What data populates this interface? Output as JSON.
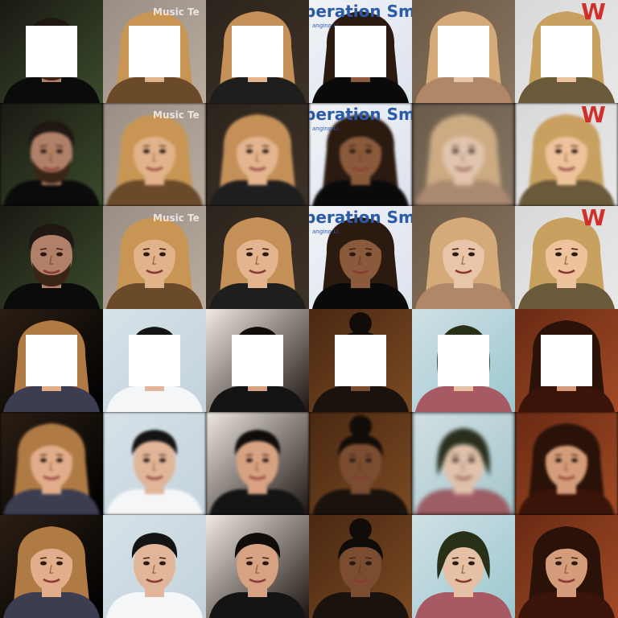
{
  "grid": {
    "columns": 6,
    "rows": 6
  },
  "row_roles": [
    "masked-input",
    "reconstruction",
    "original",
    "masked-input",
    "reconstruction",
    "original"
  ],
  "faces": [
    {
      "id": "a",
      "skin": "#b08068",
      "hair": "#1e1712",
      "bg": "#1a1a14",
      "bg2": "#3a4a2a",
      "shirt": "#0b0b0b",
      "beard": true,
      "hair_style": "short"
    },
    {
      "id": "b",
      "skin": "#e2b38a",
      "hair": "#c89555",
      "bg": "#9a8e86",
      "bg2": "#b8ad9f",
      "shirt": "#6b4a2a",
      "beard": false,
      "hair_style": "long"
    },
    {
      "id": "c",
      "skin": "#e3b48e",
      "hair": "#c49058",
      "bg": "#2c241c",
      "bg2": "#3d3228",
      "shirt": "#1e1e1e",
      "beard": false,
      "hair_style": "long"
    },
    {
      "id": "d",
      "skin": "#8a5a3c",
      "hair": "#2a1a10",
      "bg": "#f0f2f6",
      "bg2": "#dde3ee",
      "shirt": "#0a0a0a",
      "beard": false,
      "hair_style": "long"
    },
    {
      "id": "e",
      "skin": "#e8c4a8",
      "hair": "#d3aa78",
      "bg": "#6d5a44",
      "bg2": "#8a7660",
      "shirt": "#b08868",
      "beard": false,
      "hair_style": "long"
    },
    {
      "id": "f",
      "skin": "#eec29a",
      "hair": "#c8a060",
      "bg": "#d9d9d9",
      "bg2": "#e8e8e8",
      "shirt": "#6a5a3a",
      "beard": false,
      "hair_style": "long"
    },
    {
      "id": "g",
      "skin": "#e2ad8a",
      "hair": "#b07a44",
      "bg": "#2a1e14",
      "bg2": "#000000",
      "shirt": "#3d3d52",
      "beard": false,
      "hair_style": "wavy"
    },
    {
      "id": "h",
      "skin": "#e0b598",
      "hair": "#141414",
      "bg": "#d7e2e8",
      "bg2": "#c3d2dc",
      "shirt": "#f4f6f8",
      "beard": false,
      "hair_style": "short"
    },
    {
      "id": "i",
      "skin": "#d7a282",
      "hair": "#0f0c0a",
      "bg": "#efe9e2",
      "bg2": "#1c1410",
      "shirt": "#141414",
      "beard": false,
      "hair_style": "short"
    },
    {
      "id": "j",
      "skin": "#7a4c30",
      "hair": "#120c08",
      "bg": "#4a2812",
      "bg2": "#7a4a22",
      "shirt": "#1a120c",
      "beard": false,
      "hair_style": "bun"
    },
    {
      "id": "k",
      "skin": "#e6c0a4",
      "hair": "#283018",
      "bg": "#cfe0e4",
      "bg2": "#9cc8d0",
      "shirt": "#a85a64",
      "beard": false,
      "hair_style": "bob"
    },
    {
      "id": "l",
      "skin": "#d49c7a",
      "hair": "#2a1208",
      "bg": "#6a2a14",
      "bg2": "#a04a24",
      "shirt": "#3a1408",
      "beard": false,
      "hair_style": "long"
    }
  ],
  "background_texts": {
    "b": "Music Te",
    "d": "peration Smile",
    "d_sub": "anging Li",
    "f": "W"
  }
}
